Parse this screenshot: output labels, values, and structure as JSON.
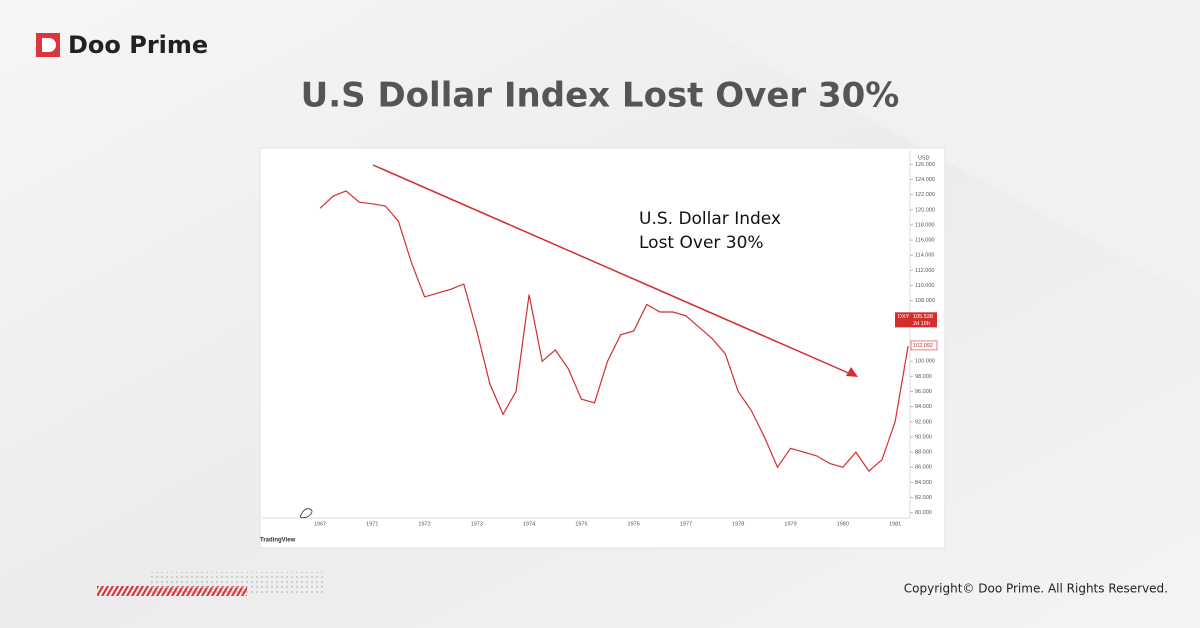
{
  "header": {
    "logo": "Doo Prime",
    "title": "U.S Dollar Index Lost Over 30%"
  },
  "chart_data": {
    "type": "line",
    "categories": [
      "1967",
      null,
      null,
      null,
      "1971",
      null,
      null,
      null,
      "1972",
      null,
      null,
      null,
      "1973",
      null,
      null,
      null,
      "1974",
      null,
      null,
      null,
      "1975",
      null,
      null,
      null,
      "1976",
      null,
      null,
      null,
      "1977",
      null,
      null,
      null,
      "1978",
      null,
      null,
      null,
      "1979",
      null,
      null,
      null,
      "1980",
      null,
      null,
      null,
      "1981",
      null
    ],
    "series": [
      {
        "name": "DXY",
        "color": "#d32f2f",
        "values": [
          120.2,
          121.8,
          122.5,
          121,
          120.8,
          120.5,
          118.5,
          113,
          108.5,
          109,
          109.5,
          110.2,
          104,
          97,
          93,
          96,
          108.8,
          100,
          101.5,
          99,
          95,
          94.5,
          100,
          103.5,
          104,
          107.5,
          106.5,
          106.5,
          106,
          104.5,
          103,
          101,
          96,
          93.5,
          90,
          86,
          88.5,
          88,
          87.5,
          86.5,
          86,
          88,
          85.5,
          87,
          92,
          102
        ]
      }
    ],
    "ylim": [
      79.3,
      127.9
    ],
    "yticks": [
      {
        "value": 80,
        "label": "80.000"
      },
      {
        "value": 82,
        "label": "82.000"
      },
      {
        "value": 84,
        "label": "84.000"
      },
      {
        "value": 86,
        "label": "86.000"
      },
      {
        "value": 88,
        "label": "88.000"
      },
      {
        "value": 90,
        "label": "90.000"
      },
      {
        "value": 92,
        "label": "92.000"
      },
      {
        "value": 94,
        "label": "94.000"
      },
      {
        "value": 96,
        "label": "96.000"
      },
      {
        "value": 98,
        "label": "98.000"
      },
      {
        "value": 100,
        "label": "100.000"
      },
      {
        "value": 108,
        "label": "108.000"
      },
      {
        "value": 110,
        "label": "110.000"
      },
      {
        "value": 112,
        "label": "112.000"
      },
      {
        "value": 114,
        "label": "114.000"
      },
      {
        "value": 116,
        "label": "116.000"
      },
      {
        "value": 118,
        "label": "118.000"
      },
      {
        "value": 120,
        "label": "120.000"
      },
      {
        "value": 122,
        "label": "122.000"
      },
      {
        "value": 124,
        "label": "124.000"
      },
      {
        "value": 126,
        "label": "126.000"
      }
    ],
    "y_axis_unit": "USD",
    "last_price": {
      "symbol": "DXY",
      "value": 105.538,
      "label": "105.538",
      "countdown": "2d 16h"
    },
    "prev_close": {
      "value": 102.092,
      "label": "102.092"
    },
    "annotation": [
      "U.S. Dollar Index",
      "Lost Over 30%"
    ],
    "source": "TradingView"
  },
  "footer": {
    "copyright": "Copyright© Doo Prime. All Rights Reserved."
  }
}
